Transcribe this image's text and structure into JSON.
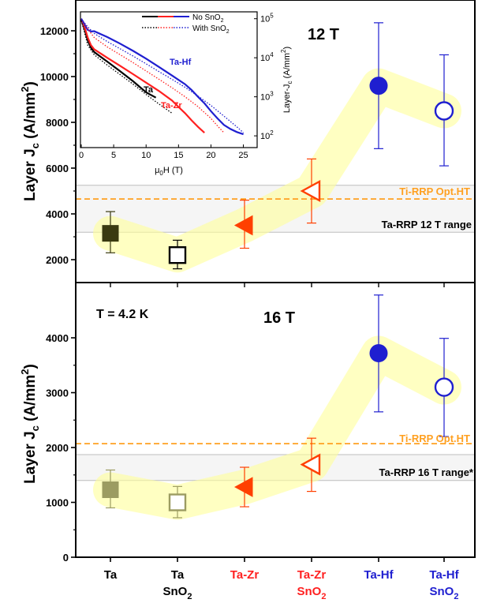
{
  "chart_data": [
    {
      "type": "scatter",
      "panel_label": "12 T",
      "ylabel": "Layer J",
      "ylabel_sub": "c",
      "ylabel_unit": " (A/mm",
      "ylabel_sup": "2",
      "ylabel_close": ")",
      "ylim": [
        1000,
        13000
      ],
      "yticks": [
        2000,
        4000,
        6000,
        8000,
        10000,
        12000
      ],
      "colors": {
        "dark": "#3a3a10",
        "black": "#000000",
        "red": "#ff4000",
        "blue": "#1f1fd0",
        "band": "#ffff99",
        "orange": "#ffa020",
        "range_fill": "#ececec"
      },
      "points": [
        {
          "x": "Ta",
          "y": 3150,
          "yerr_low": 2300,
          "yerr_high": 4100,
          "marker": "square",
          "filled": true,
          "color": "#3a3a10"
        },
        {
          "x": "Ta SnO2",
          "y": 2200,
          "yerr_low": 1600,
          "yerr_high": 2850,
          "marker": "square",
          "filled": false,
          "color": "#000000"
        },
        {
          "x": "Ta-Zr",
          "y": 3500,
          "yerr_low": 2500,
          "yerr_high": 4600,
          "marker": "triangle-left",
          "filled": true,
          "color": "#ff4000"
        },
        {
          "x": "Ta-Zr SnO2",
          "y": 5000,
          "yerr_low": 3600,
          "yerr_high": 6400,
          "marker": "triangle-left",
          "filled": false,
          "color": "#ff4000"
        },
        {
          "x": "Ta-Hf",
          "y": 9600,
          "yerr_low": 6850,
          "yerr_high": 12350,
          "marker": "circle",
          "filled": true,
          "color": "#1f1fd0"
        },
        {
          "x": "Ta-Hf SnO2",
          "y": 8500,
          "yerr_low": 6100,
          "yerr_high": 10950,
          "marker": "circle",
          "filled": false,
          "color": "#1f1fd0"
        }
      ],
      "reference_line": {
        "label": "Ti-RRP Opt.HT",
        "y": 4650
      },
      "range_band": {
        "label": "Ta-RRP 12 T range",
        "y_low": 3200,
        "y_high": 5250
      },
      "inset": {
        "type": "line",
        "xlabel": "μ",
        "xlabel_sub": "0",
        "xlabel_unit": "H (T)",
        "ylabel": "Layer-J",
        "ylabel_sub": "c",
        "ylabel_unit": " (A/mm",
        "ylabel_sup": "2",
        "ylabel_close": ")",
        "xlim": [
          0,
          27
        ],
        "xticks": [
          0,
          5,
          10,
          15,
          20,
          25
        ],
        "ylim": [
          50,
          150000
        ],
        "yscale": "log",
        "yticks": [
          100,
          1000,
          10000,
          100000
        ],
        "ytick_labels": [
          "10",
          "10",
          "10",
          "10"
        ],
        "ytick_exps": [
          "2",
          "3",
          "4",
          "5"
        ],
        "legend": {
          "row1_label": "No SnO",
          "row1_sub": "2",
          "row2_label": "With SnO",
          "row2_sub": "2",
          "placement": "top"
        },
        "curve_labels": [
          {
            "text": "Ta-Hf",
            "color": "#1f1fd0"
          },
          {
            "text": "Ta",
            "color": "#000000"
          },
          {
            "text": "Ta-Zr",
            "color": "#ff2020"
          }
        ],
        "series": [
          {
            "name": "Ta",
            "color": "#000000",
            "dashed": false,
            "x": [
              0,
              0.5,
              1,
              1.5,
              2,
              4,
              6,
              8,
              10,
              11.5
            ],
            "y": [
              95000,
              55000,
              28000,
              18000,
              14000,
              8000,
              4500,
              2500,
              1300,
              950
            ]
          },
          {
            "name": "Ta-Zr",
            "color": "#ff2020",
            "dashed": false,
            "x": [
              0,
              0.5,
              1,
              1.5,
              2,
              4,
              6,
              8,
              10,
              12,
              14,
              15,
              16,
              17,
              18,
              19
            ],
            "y": [
              98000,
              62000,
              33000,
              21000,
              16500,
              10000,
              6200,
              3800,
              2300,
              1400,
              800,
              550,
              380,
              250,
              170,
              120
            ]
          },
          {
            "name": "Ta-Hf",
            "color": "#1f1fd0",
            "dashed": false,
            "x": [
              0,
              0.5,
              1,
              1.5,
              2,
              4,
              6,
              8,
              10,
              12,
              14,
              16,
              17,
              18,
              19,
              20,
              21,
              22,
              23,
              24,
              25
            ],
            "y": [
              100000,
              72000,
              52000,
              47000,
              48000,
              34000,
              23000,
              15000,
              9500,
              5800,
              3500,
              2100,
              1500,
              1000,
              680,
              430,
              280,
              190,
              150,
              125,
              110
            ]
          },
          {
            "name": "Ta",
            "color": "#000000",
            "dashed": true,
            "x": [
              0,
              0.5,
              1,
              2,
              4,
              6,
              8,
              10,
              12,
              14
            ],
            "y": [
              90000,
              45000,
              21000,
              12000,
              6500,
              3700,
              2100,
              1150,
              650,
              380
            ]
          },
          {
            "name": "Ta-Zr",
            "color": "#ff2020",
            "dashed": true,
            "x": [
              0,
              1,
              2,
              4,
              6,
              8,
              10,
              12,
              14,
              16,
              18,
              20,
              21,
              22
            ],
            "y": [
              100000,
              55000,
              33000,
              19000,
              12000,
              7500,
              4600,
              2800,
              1700,
              1000,
              560,
              280,
              180,
              120
            ]
          },
          {
            "name": "Ta-Hf",
            "color": "#1f1fd0",
            "dashed": true,
            "x": [
              0,
              1,
              2,
              4,
              6,
              8,
              10,
              12,
              14,
              16,
              18,
              20,
              22,
              24,
              25
            ],
            "y": [
              100000,
              62000,
              42000,
              26000,
              17000,
              11000,
              7000,
              4400,
              2800,
              1750,
              1050,
              600,
              320,
              170,
              120
            ]
          }
        ]
      }
    },
    {
      "type": "scatter",
      "panel_label": "16 T",
      "temperature_label": "T = 4.2 K",
      "ylabel": "Layer J",
      "ylabel_sub": "c",
      "ylabel_unit": " (A/mm",
      "ylabel_sup": "2",
      "ylabel_close": ")",
      "ylim": [
        0,
        4900
      ],
      "yticks": [
        0,
        1000,
        2000,
        3000,
        4000
      ],
      "points": [
        {
          "x": "Ta",
          "y": 1230,
          "yerr_low": 900,
          "yerr_high": 1590,
          "marker": "square",
          "filled": true,
          "color": "#9c9c62"
        },
        {
          "x": "Ta SnO2",
          "y": 1000,
          "yerr_low": 720,
          "yerr_high": 1290,
          "marker": "square",
          "filled": false,
          "color": "#9c9c62"
        },
        {
          "x": "Ta-Zr",
          "y": 1280,
          "yerr_low": 920,
          "yerr_high": 1640,
          "marker": "triangle-left",
          "filled": true,
          "color": "#ff4000"
        },
        {
          "x": "Ta-Zr SnO2",
          "y": 1690,
          "yerr_low": 1200,
          "yerr_high": 2170,
          "marker": "triangle-left",
          "filled": false,
          "color": "#ff4000"
        },
        {
          "x": "Ta-Hf",
          "y": 3720,
          "yerr_low": 2650,
          "yerr_high": 4780,
          "marker": "circle",
          "filled": true,
          "color": "#1f1fd0"
        },
        {
          "x": "Ta-Hf SnO2",
          "y": 3100,
          "yerr_low": 2200,
          "yerr_high": 3990,
          "marker": "circle",
          "filled": false,
          "color": "#1f1fd0"
        }
      ],
      "reference_line": {
        "label": "Ti-RRP Opt.HT",
        "y": 2070
      },
      "range_band": {
        "label": "Ta-RRP 16 T range*",
        "y_low": 1400,
        "y_high": 1870
      }
    }
  ],
  "categories": [
    {
      "line1": "Ta",
      "line2": "",
      "line2_sub": "",
      "color": "#000000"
    },
    {
      "line1": "Ta",
      "line2": "SnO",
      "line2_sub": "2",
      "color": "#000000"
    },
    {
      "line1": "Ta-Zr",
      "line2": "",
      "line2_sub": "",
      "color": "#ff2020"
    },
    {
      "line1": "Ta-Zr",
      "line2": "SnO",
      "line2_sub": "2",
      "color": "#ff2020"
    },
    {
      "line1": "Ta-Hf",
      "line2": "",
      "line2_sub": "",
      "color": "#1f1fd0"
    },
    {
      "line1": "Ta-Hf",
      "line2": "SnO",
      "line2_sub": "2",
      "color": "#1f1fd0"
    }
  ]
}
